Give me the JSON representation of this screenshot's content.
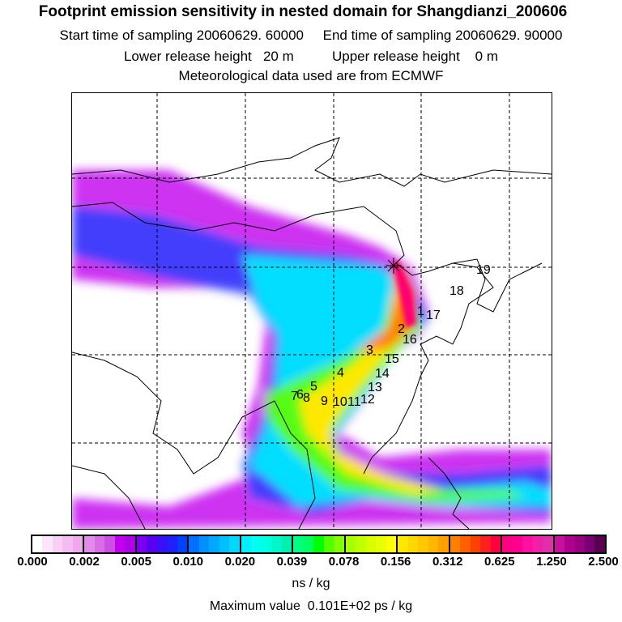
{
  "title": "Footprint emission sensitivity in nested domain for Shangdianzi_200606",
  "line1": "Start time of sampling 20060629. 60000     End time of sampling 20060629. 90000",
  "line2": "Lower release height   20 m          Upper release height    0 m",
  "line3": "Meteorological data used are from ECMWF",
  "colorbar": {
    "labels": [
      "0.000",
      "0.002",
      "0.005",
      "0.010",
      "0.020",
      "0.039",
      "0.078",
      "0.156",
      "0.312",
      "0.625",
      "1.250",
      "2.500"
    ],
    "colors": [
      [
        "#ffffff",
        "#fde6fb",
        "#f8d0f6",
        "#f4bcf2",
        "#efa8ee"
      ],
      [
        "#e38be9",
        "#d86ee6",
        "#cc4ee6",
        "#c000ee",
        "#b000e8"
      ],
      [
        "#7a00f0",
        "#5a00f0",
        "#3a10f8",
        "#2020ff",
        "#0040ff"
      ],
      [
        "#0070ff",
        "#0090ff",
        "#00a8ff",
        "#00c0ff",
        "#00d8ff"
      ],
      [
        "#00f0ff",
        "#00fff0",
        "#00ffe0",
        "#00f8c8",
        "#00f0b0"
      ],
      [
        "#00ff80",
        "#00ff60",
        "#00ff00",
        "#50ff00",
        "#80ff00"
      ],
      [
        "#a8ff00",
        "#c0ff00",
        "#d8ff00",
        "#e8ff00",
        "#ffff00"
      ],
      [
        "#ffe800",
        "#ffd800",
        "#ffc800",
        "#ffb800",
        "#ffa000"
      ],
      [
        "#ff8000",
        "#ff6000",
        "#ff4000",
        "#ff2020",
        "#ff0040"
      ],
      [
        "#ff0080",
        "#ff0090",
        "#ff10a0",
        "#f020a8",
        "#e030a8"
      ],
      [
        "#c8109c",
        "#b00090",
        "#980080",
        "#780070",
        "#580050"
      ]
    ]
  },
  "unit": "ns / kg",
  "max_value": "Maximum value  0.101E+02 ps / kg",
  "markers": [
    "1",
    "2",
    "3",
    "4",
    "5",
    "6",
    "7",
    "8",
    "9",
    "10",
    "11",
    "12",
    "13",
    "14",
    "15",
    "16",
    "17",
    "18",
    "19"
  ]
}
